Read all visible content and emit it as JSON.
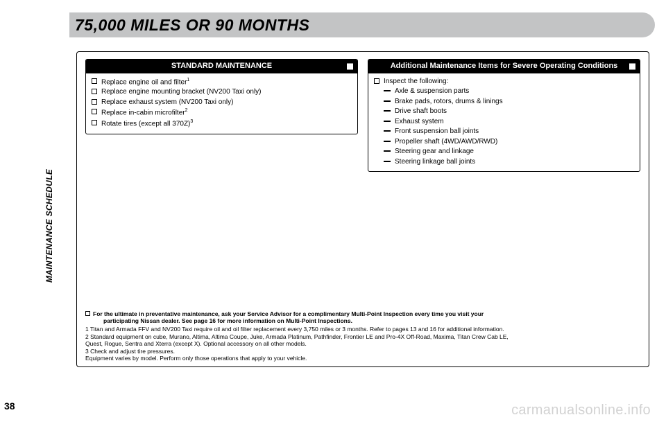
{
  "page": {
    "title": "75,000 MILES OR 90 MONTHS",
    "side_label": "MAINTENANCE SCHEDULE",
    "page_number": "38",
    "watermark": "carmanualsonline.info"
  },
  "standard": {
    "header": "STANDARD MAINTENANCE",
    "items": [
      {
        "text": "Replace engine oil and filter",
        "sup": "1"
      },
      {
        "text": "Replace engine mounting bracket (NV200 Taxi only)"
      },
      {
        "text": "Replace exhaust system (NV200 Taxi only)"
      },
      {
        "text": "Replace in-cabin microfilter",
        "sup": "2"
      },
      {
        "text": "Rotate tires (except all 370Z)",
        "sup": "3"
      }
    ]
  },
  "severe": {
    "header": "Additional Maintenance Items for Severe Operating Conditions",
    "lead": "Inspect the following:",
    "items": [
      "Axle & suspension parts",
      "Brake pads, rotors, drums & linings",
      "Drive shaft boots",
      "Exhaust system",
      "Front suspension ball joints",
      "Propeller shaft (4WD/AWD/RWD)",
      "Steering gear and linkage",
      "Steering linkage ball joints"
    ]
  },
  "footnotes": {
    "lead_line1": "For the ultimate in preventative maintenance, ask your Service Advisor for a complimentary Multi-Point Inspection every time you visit your",
    "lead_line2": "participating Nissan dealer. See page 16 for more information on Multi-Point Inspections.",
    "n1": "1 Titan and Armada FFV and NV200 Taxi require oil and oil filter replacement every 3,750 miles or 3 months. Refer to pages 13 and 16 for additional information.",
    "n2a": "2 Standard equipment on cube, Murano, Altima, Altima Coupe, Juke, Armada Platinum, Pathfinder, Frontier LE and Pro-4X Off-Road, Maxima, Titan Crew Cab LE,",
    "n2b": "Quest, Rogue, Sentra and Xterra (except X). Optional accessory on all other models.",
    "n3": "3 Check and adjust tire pressures.",
    "n4": "Equipment varies by model. Perform only those operations that apply to your vehicle."
  }
}
